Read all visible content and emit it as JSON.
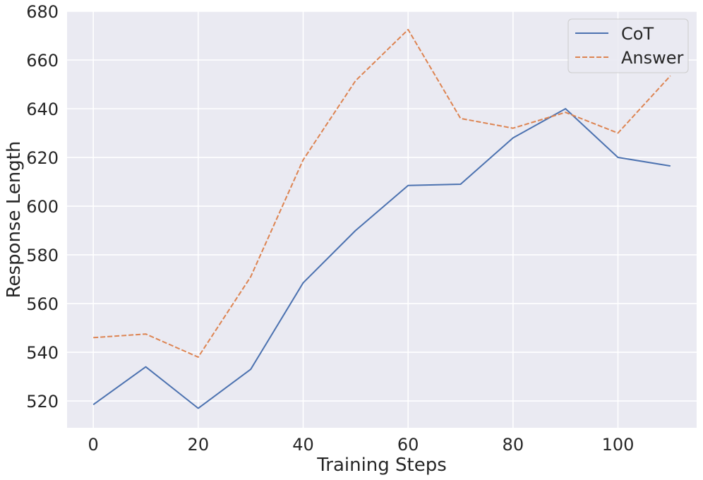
{
  "chart_data": {
    "type": "line",
    "title": "",
    "xlabel": "Training Steps",
    "ylabel": "Response Length",
    "x": [
      0,
      10,
      20,
      30,
      40,
      50,
      60,
      70,
      80,
      90,
      100,
      110
    ],
    "xlim": [
      -5,
      115
    ],
    "ylim": [
      509,
      680
    ],
    "xticks": [
      0,
      20,
      40,
      60,
      80,
      100
    ],
    "yticks": [
      520,
      540,
      560,
      580,
      600,
      620,
      640,
      660,
      680
    ],
    "grid": true,
    "legend_position": "top-right",
    "series": [
      {
        "name": "CoT",
        "style": "solid",
        "color": "#4c72b0",
        "values": [
          518.5,
          534,
          517,
          533,
          568.5,
          590,
          608.5,
          609,
          628,
          640,
          620,
          616.5
        ]
      },
      {
        "name": "Answer",
        "style": "dashed",
        "color": "#dd8452",
        "values": [
          546,
          547.5,
          538,
          571,
          619,
          651.5,
          672.5,
          636,
          632,
          638.5,
          630,
          653.5
        ]
      }
    ]
  },
  "colors": {
    "plot_background": "#eaeaf2",
    "grid": "#ffffff"
  }
}
